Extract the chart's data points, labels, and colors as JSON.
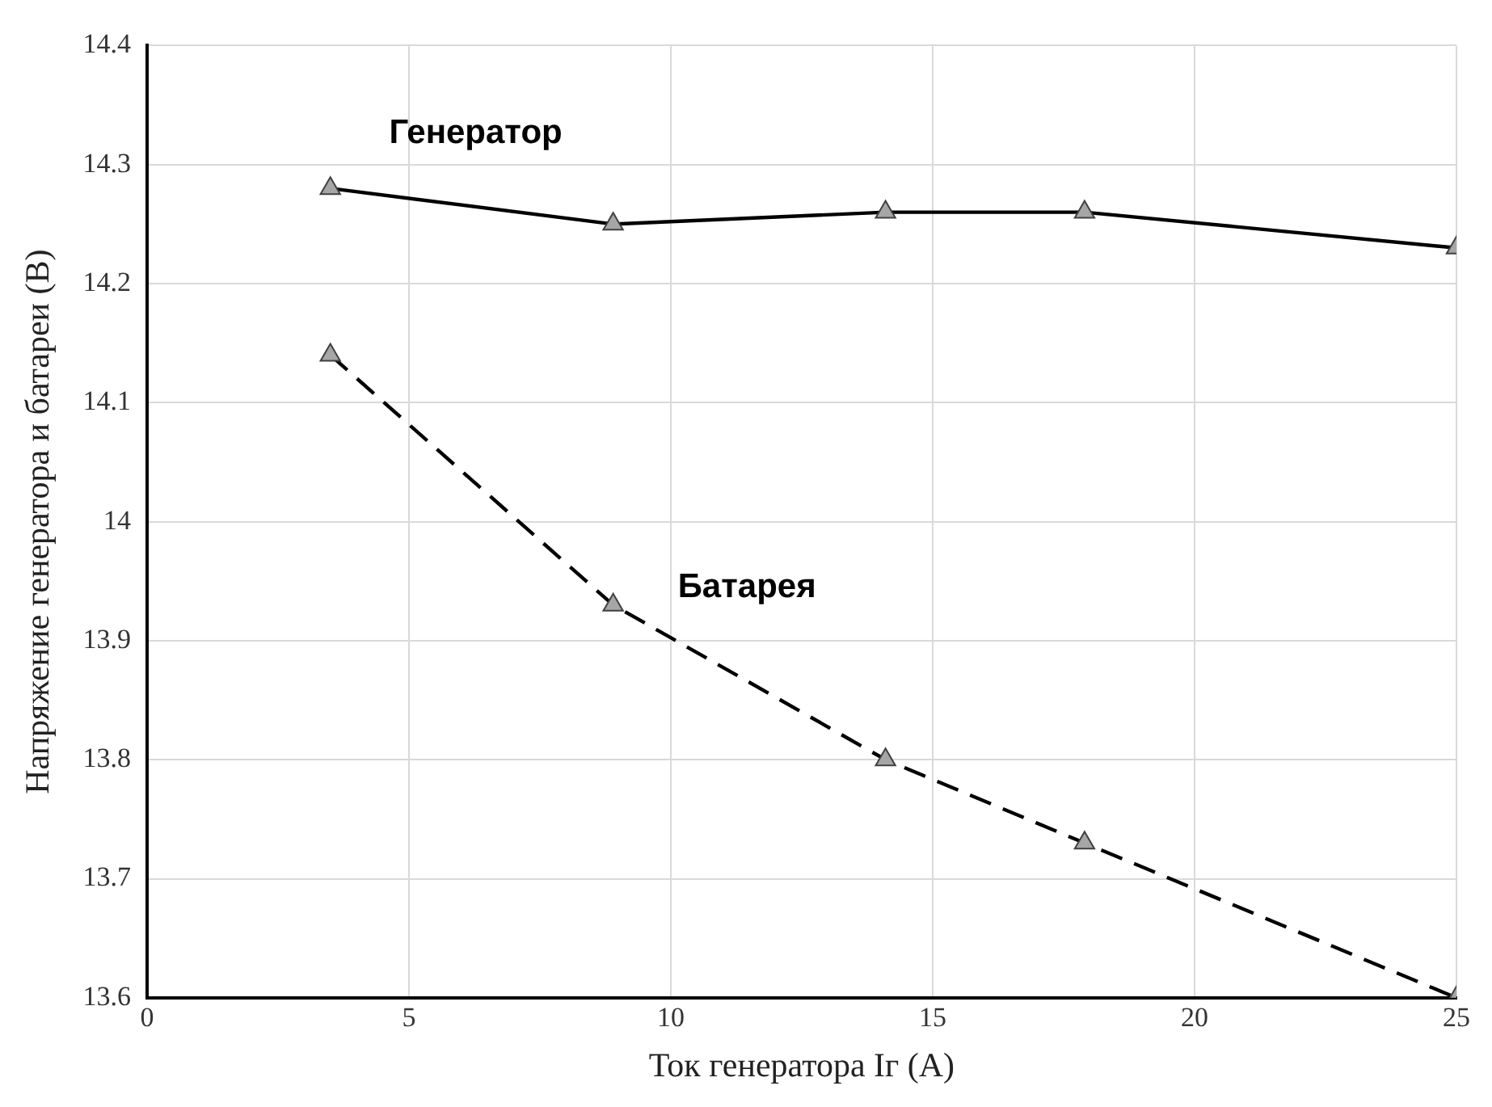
{
  "chart_data": {
    "type": "line",
    "xlabel": "Ток генератора Iг (A)",
    "ylabel": "Напряжение генератора и батареи (В)",
    "xlim": [
      0,
      25
    ],
    "xticks": [
      0,
      5,
      10,
      15,
      20,
      25
    ],
    "ylim": [
      13.6,
      14.4
    ],
    "yticks": [
      13.6,
      13.7,
      13.8,
      13.9,
      14,
      14.1,
      14.2,
      14.3,
      14.4
    ],
    "grid": true,
    "marker": "triangle",
    "legend": false,
    "series": [
      {
        "name": "Генератор",
        "color": "#000000",
        "line_style": "solid",
        "x": [
          3.5,
          8.9,
          14.1,
          17.9,
          25
        ],
        "values": [
          14.28,
          14.25,
          14.26,
          14.26,
          14.23
        ]
      },
      {
        "name": "Батарея",
        "color": "#000000",
        "line_style": "dashed",
        "x": [
          3.5,
          8.9,
          14.1,
          17.9,
          25
        ],
        "values": [
          14.14,
          13.93,
          13.8,
          13.73,
          13.6
        ]
      }
    ]
  }
}
